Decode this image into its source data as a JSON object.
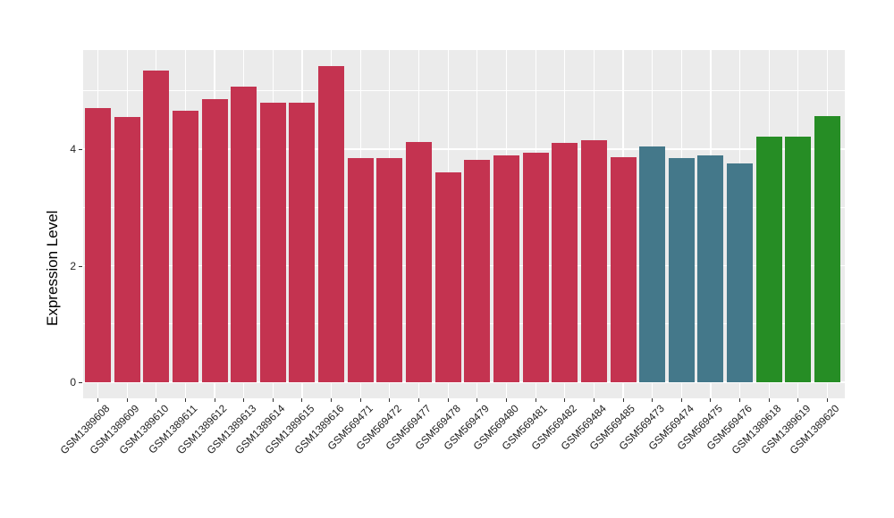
{
  "chart_data": {
    "type": "bar",
    "title": "",
    "xlabel": "",
    "ylabel": "Expression Level",
    "ylim": [
      0,
      5.7
    ],
    "yticks": [
      {
        "value": 0,
        "label": "0"
      },
      {
        "value": 2,
        "label": "2"
      },
      {
        "value": 4,
        "label": "4"
      }
    ],
    "minor_gridline_values": [
      1,
      3,
      5
    ],
    "grid": "on",
    "legend_position": "none",
    "colors": {
      "panel_background": "#EBEBEB",
      "figure_background": "#FFFFFF",
      "gridline": "#FFFFFF",
      "tick_mark": "#333333",
      "red_group": "#C43350",
      "teal_group": "#44788A",
      "green_group": "#268D25"
    },
    "bars": [
      {
        "label": "GSM1389608",
        "value": 4.71,
        "group": "red_group"
      },
      {
        "label": "GSM1389609",
        "value": 4.55,
        "group": "red_group"
      },
      {
        "label": "GSM1389610",
        "value": 5.35,
        "group": "red_group"
      },
      {
        "label": "GSM1389611",
        "value": 4.66,
        "group": "red_group"
      },
      {
        "label": "GSM1389612",
        "value": 4.86,
        "group": "red_group"
      },
      {
        "label": "GSM1389613",
        "value": 5.07,
        "group": "red_group"
      },
      {
        "label": "GSM1389614",
        "value": 4.79,
        "group": "red_group"
      },
      {
        "label": "GSM1389615",
        "value": 4.79,
        "group": "red_group"
      },
      {
        "label": "GSM1389616",
        "value": 5.43,
        "group": "red_group"
      },
      {
        "label": "GSM569471",
        "value": 3.84,
        "group": "red_group"
      },
      {
        "label": "GSM569472",
        "value": 3.84,
        "group": "red_group"
      },
      {
        "label": "GSM569477",
        "value": 4.13,
        "group": "red_group"
      },
      {
        "label": "GSM569478",
        "value": 3.6,
        "group": "red_group"
      },
      {
        "label": "GSM569479",
        "value": 3.81,
        "group": "red_group"
      },
      {
        "label": "GSM569480",
        "value": 3.9,
        "group": "red_group"
      },
      {
        "label": "GSM569481",
        "value": 3.94,
        "group": "red_group"
      },
      {
        "label": "GSM569482",
        "value": 4.11,
        "group": "red_group"
      },
      {
        "label": "GSM569484",
        "value": 4.15,
        "group": "red_group"
      },
      {
        "label": "GSM569485",
        "value": 3.86,
        "group": "red_group"
      },
      {
        "label": "GSM569473",
        "value": 4.04,
        "group": "teal_group"
      },
      {
        "label": "GSM569474",
        "value": 3.84,
        "group": "teal_group"
      },
      {
        "label": "GSM569475",
        "value": 3.9,
        "group": "teal_group"
      },
      {
        "label": "GSM569476",
        "value": 3.75,
        "group": "teal_group"
      },
      {
        "label": "GSM1389618",
        "value": 4.22,
        "group": "green_group"
      },
      {
        "label": "GSM1389619",
        "value": 4.22,
        "group": "green_group"
      },
      {
        "label": "GSM1389620",
        "value": 4.57,
        "group": "green_group"
      }
    ]
  }
}
